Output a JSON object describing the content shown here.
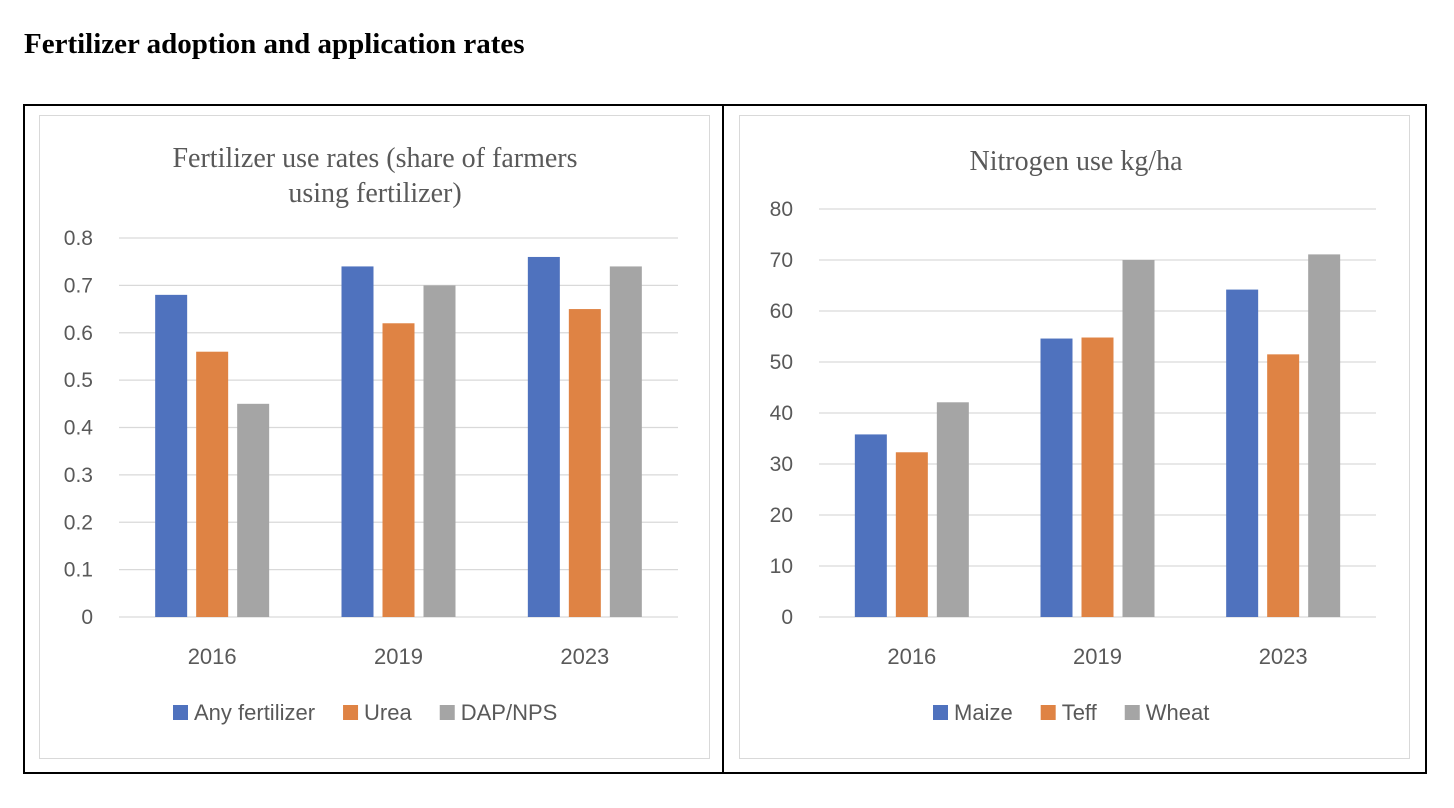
{
  "page": {
    "heading": "Fertilizer adoption and application rates"
  },
  "colors": {
    "series1": "#4f72be",
    "series2": "#df8344",
    "series3": "#a5a5a5"
  },
  "chart_data": [
    {
      "type": "bar",
      "title_lines": [
        "Fertilizer use rates (share of farmers",
        "using fertilizer)"
      ],
      "categories": [
        "2016",
        "2019",
        "2023"
      ],
      "series": [
        {
          "name": "Any fertilizer",
          "values": [
            0.68,
            0.74,
            0.76
          ]
        },
        {
          "name": "Urea",
          "values": [
            0.56,
            0.62,
            0.65
          ]
        },
        {
          "name": "DAP/NPS",
          "values": [
            0.45,
            0.7,
            0.74
          ]
        }
      ],
      "ylim": [
        0,
        0.8
      ],
      "yticks": [
        "0",
        "0.1",
        "0.2",
        "0.3",
        "0.4",
        "0.5",
        "0.6",
        "0.7",
        "0.8"
      ],
      "grid": true,
      "legend": "bottom"
    },
    {
      "type": "bar",
      "title_lines": [
        "Nitrogen use kg/ha"
      ],
      "categories": [
        "2016",
        "2019",
        "2023"
      ],
      "series": [
        {
          "name": "Maize",
          "values": [
            35.8,
            54.6,
            64.2
          ]
        },
        {
          "name": "Teff",
          "values": [
            32.3,
            54.8,
            51.5
          ]
        },
        {
          "name": "Wheat",
          "values": [
            42.1,
            70.0,
            71.1
          ]
        }
      ],
      "ylim": [
        0,
        80
      ],
      "yticks": [
        "0",
        "10",
        "20",
        "30",
        "40",
        "50",
        "60",
        "70",
        "80"
      ],
      "grid": true,
      "legend": "bottom"
    }
  ]
}
